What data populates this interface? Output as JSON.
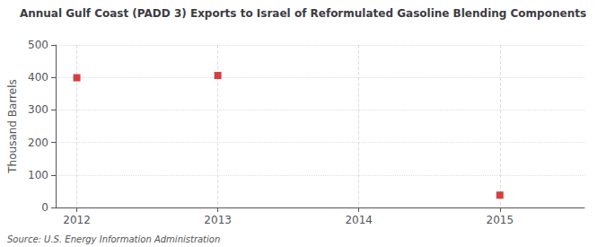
{
  "chart_data": {
    "type": "scatter",
    "title": "Annual Gulf Coast (PADD 3) Exports to Israel of Reformulated Gasoline Blending Components",
    "ylabel": "Thousand Barrels",
    "annotation": "Source: U.S. Energy Information Administration",
    "x": [
      2012,
      2013,
      2015
    ],
    "values": [
      399,
      406,
      38
    ],
    "color": "#cc1111",
    "marker": "square",
    "xlim": [
      2011.85,
      2015.6
    ],
    "xticks": [
      2012,
      2013,
      2014,
      2015
    ],
    "ylim": [
      0,
      500
    ],
    "yticks": [
      0,
      100,
      200,
      300,
      400,
      500
    ],
    "grid": true
  }
}
